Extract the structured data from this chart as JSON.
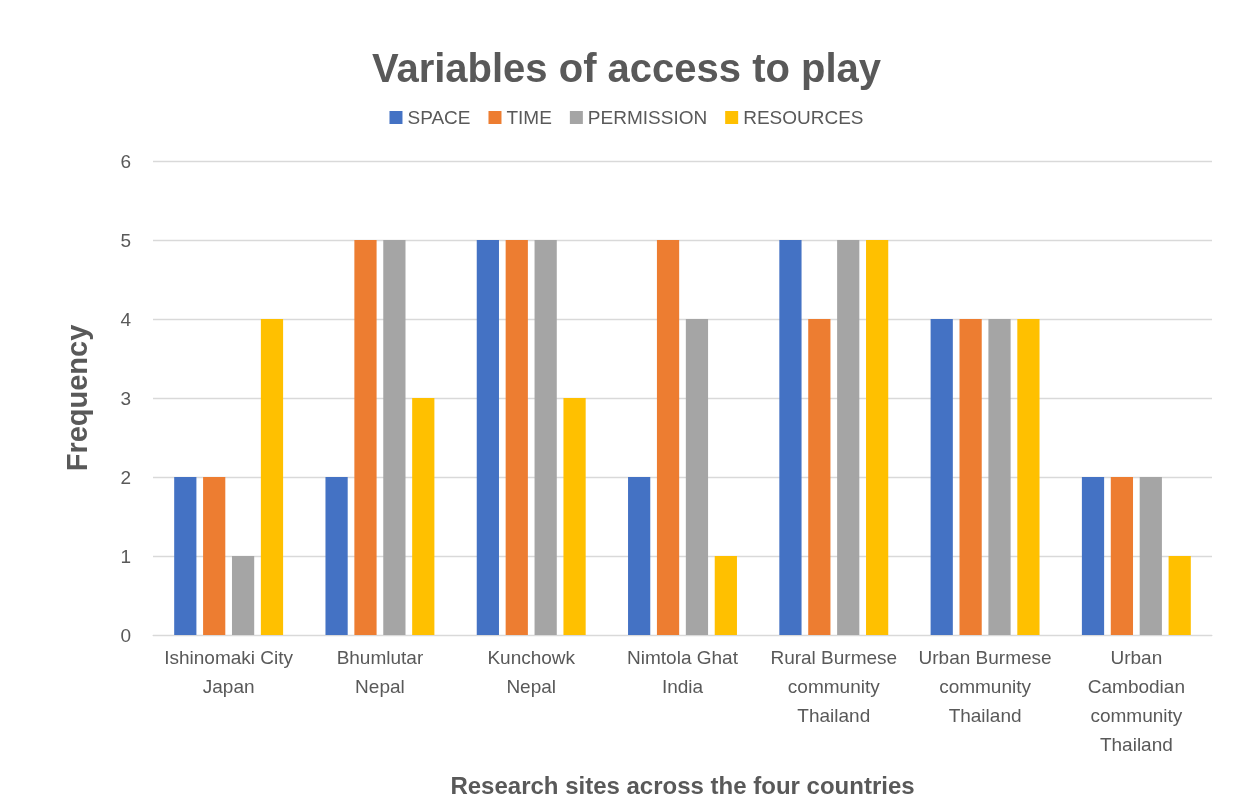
{
  "chart_data": {
    "type": "bar",
    "title": "Variables of access to play",
    "xlabel": "Research sites across the four countries",
    "ylabel": "Frequency",
    "categories": [
      "Ishinomaki City\nJapan",
      "Bhumlutar\nNepal",
      "Kunchowk\nNepal",
      "Nimtola Ghat\nIndia",
      "Rural Burmese\ncommunity\nThailand",
      "Urban Burmese\ncommunity\nThailand",
      "Urban\nCambodian\ncommunity\nThailand"
    ],
    "series": [
      {
        "name": "SPACE",
        "color": "#4472c4",
        "values": [
          2,
          2,
          5,
          2,
          5,
          4,
          2
        ]
      },
      {
        "name": "TIME",
        "color": "#ed7d31",
        "values": [
          2,
          5,
          5,
          5,
          4,
          4,
          2
        ]
      },
      {
        "name": "PERMISSION",
        "color": "#a5a5a5",
        "values": [
          1,
          5,
          5,
          4,
          5,
          4,
          2
        ]
      },
      {
        "name": "RESOURCES",
        "color": "#ffc000",
        "values": [
          4,
          3,
          3,
          1,
          5,
          4,
          1
        ]
      }
    ],
    "ylim": [
      0,
      6
    ],
    "yticks": [
      0,
      1,
      2,
      3,
      4,
      5,
      6
    ],
    "grid": "y",
    "legend": "top"
  }
}
